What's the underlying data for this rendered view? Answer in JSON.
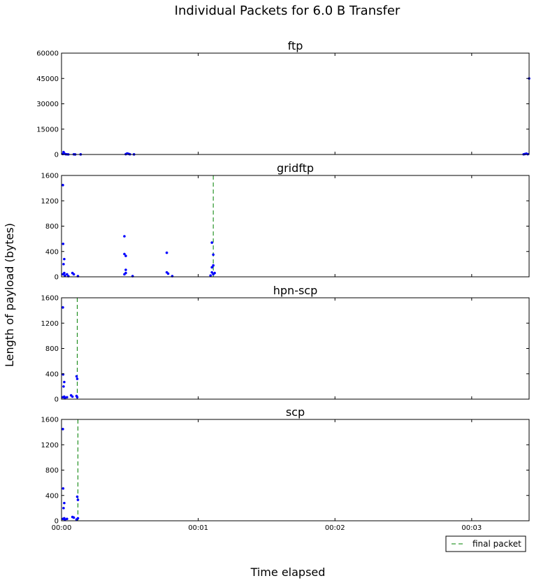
{
  "figure_title": "Individual Packets for 6.0 B Transfer",
  "colors": {
    "marker": "#0000ff",
    "final_line": "#008000"
  },
  "chart_data": {
    "type": "scatter",
    "title": "Individual Packets for 6.0 B Transfer",
    "xlabel": "Time elapsed",
    "ylabel": "Length of payload (bytes)",
    "xlim_seconds": [
      0,
      3.42
    ],
    "x_tick_labels": [
      "00:00",
      "00:01",
      "00:02",
      "00:03"
    ],
    "x_tick_values_seconds": [
      0,
      1,
      2,
      3
    ],
    "legend": {
      "entries": [
        "final packet"
      ],
      "placement": "lower-right, below plots"
    },
    "grid": false,
    "subplots": [
      {
        "title": "ftp",
        "ylim": [
          0,
          60000
        ],
        "yticks": [
          0,
          15000,
          30000,
          45000,
          60000
        ],
        "final_packet_x": null,
        "points": [
          [
            0.01,
            300
          ],
          [
            0.015,
            1448
          ],
          [
            0.02,
            600
          ],
          [
            0.03,
            200
          ],
          [
            0.04,
            100
          ],
          [
            0.05,
            50
          ],
          [
            0.09,
            80
          ],
          [
            0.1,
            40
          ],
          [
            0.14,
            60
          ],
          [
            0.47,
            200
          ],
          [
            0.48,
            600
          ],
          [
            0.49,
            400
          ],
          [
            0.5,
            150
          ],
          [
            0.53,
            60
          ],
          [
            3.38,
            100
          ],
          [
            3.39,
            300
          ],
          [
            3.4,
            500
          ],
          [
            3.41,
            200
          ],
          [
            3.42,
            45000
          ]
        ]
      },
      {
        "title": "gridftp",
        "ylim": [
          0,
          1600
        ],
        "yticks": [
          0,
          400,
          800,
          1200,
          1600
        ],
        "final_packet_x": 1.11,
        "points": [
          [
            0.01,
            1448
          ],
          [
            0.012,
            520
          ],
          [
            0.015,
            200
          ],
          [
            0.02,
            280
          ],
          [
            0.01,
            40
          ],
          [
            0.02,
            60
          ],
          [
            0.025,
            20
          ],
          [
            0.04,
            40
          ],
          [
            0.05,
            10
          ],
          [
            0.08,
            60
          ],
          [
            0.09,
            40
          ],
          [
            0.12,
            10
          ],
          [
            0.46,
            640
          ],
          [
            0.46,
            360
          ],
          [
            0.47,
            330
          ],
          [
            0.47,
            110
          ],
          [
            0.46,
            40
          ],
          [
            0.47,
            60
          ],
          [
            0.52,
            10
          ],
          [
            0.77,
            380
          ],
          [
            0.77,
            70
          ],
          [
            0.78,
            50
          ],
          [
            0.81,
            10
          ],
          [
            1.1,
            540
          ],
          [
            1.1,
            150
          ],
          [
            1.11,
            180
          ],
          [
            1.11,
            350
          ],
          [
            1.1,
            70
          ],
          [
            1.11,
            40
          ],
          [
            1.12,
            60
          ],
          [
            1.09,
            20
          ]
        ]
      },
      {
        "title": "hpn-scp",
        "ylim": [
          0,
          1600
        ],
        "yticks": [
          0,
          400,
          800,
          1200,
          1600
        ],
        "final_packet_x": 0.115,
        "points": [
          [
            0.01,
            1448
          ],
          [
            0.012,
            390
          ],
          [
            0.015,
            200
          ],
          [
            0.02,
            270
          ],
          [
            0.01,
            30
          ],
          [
            0.02,
            40
          ],
          [
            0.025,
            20
          ],
          [
            0.04,
            30
          ],
          [
            0.07,
            60
          ],
          [
            0.08,
            40
          ],
          [
            0.11,
            360
          ],
          [
            0.115,
            320
          ],
          [
            0.11,
            50
          ],
          [
            0.115,
            30
          ]
        ]
      },
      {
        "title": "scp",
        "ylim": [
          0,
          1600
        ],
        "yticks": [
          0,
          400,
          800,
          1200,
          1600
        ],
        "final_packet_x": 0.12,
        "points": [
          [
            0.01,
            1448
          ],
          [
            0.012,
            510
          ],
          [
            0.015,
            200
          ],
          [
            0.02,
            280
          ],
          [
            0.01,
            30
          ],
          [
            0.02,
            40
          ],
          [
            0.025,
            20
          ],
          [
            0.04,
            30
          ],
          [
            0.08,
            60
          ],
          [
            0.09,
            50
          ],
          [
            0.115,
            380
          ],
          [
            0.12,
            330
          ],
          [
            0.12,
            40
          ],
          [
            0.11,
            20
          ]
        ]
      }
    ]
  }
}
